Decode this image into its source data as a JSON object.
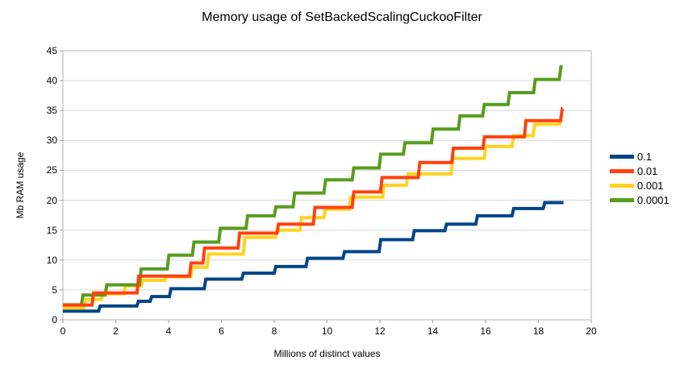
{
  "title": "Memory usage of SetBackedScalingCuckooFilter",
  "chart_data": {
    "type": "line",
    "subtype": "step",
    "title": "Memory usage of SetBackedScalingCuckooFilter",
    "xlabel": "Millions of distinct values",
    "ylabel": "Mb RAM usage",
    "xlim": [
      0,
      20
    ],
    "ylim": [
      0,
      45
    ],
    "xticks": [
      0,
      2,
      4,
      6,
      8,
      10,
      12,
      14,
      16,
      18,
      20
    ],
    "yticks": [
      0,
      5,
      10,
      15,
      20,
      25,
      30,
      35,
      40,
      45
    ],
    "grid": "horizontal-only",
    "gridline_color": "#d9d9d9",
    "frame_color": "#b3b3b3",
    "tick_color": "#999999",
    "legend_position": "right",
    "line_width": 4,
    "series": [
      {
        "name": "0.1",
        "color": "#004586",
        "end_x": 18.95,
        "points": [
          [
            0,
            1.45
          ],
          [
            1.35,
            2.3
          ],
          [
            2.8,
            3.1
          ],
          [
            3.3,
            3.9
          ],
          [
            4.03,
            5.2
          ],
          [
            5.35,
            6.8
          ],
          [
            6.77,
            7.8
          ],
          [
            8.0,
            8.9
          ],
          [
            9.2,
            10.3
          ],
          [
            10.6,
            11.4
          ],
          [
            11.97,
            13.4
          ],
          [
            13.24,
            14.9
          ],
          [
            14.46,
            16.0
          ],
          [
            15.63,
            17.4
          ],
          [
            17.0,
            18.6
          ],
          [
            18.18,
            19.6
          ]
        ]
      },
      {
        "name": "0.01",
        "color": "#FF420E",
        "end_x": 18.92,
        "points": [
          [
            0,
            2.45
          ],
          [
            1.1,
            4.5
          ],
          [
            2.81,
            7.3
          ],
          [
            4.79,
            9.5
          ],
          [
            5.3,
            12.0
          ],
          [
            6.63,
            14.5
          ],
          [
            8.1,
            16.0
          ],
          [
            9.48,
            18.8
          ],
          [
            10.95,
            21.4
          ],
          [
            12.02,
            23.8
          ],
          [
            13.45,
            26.3
          ],
          [
            14.72,
            28.7
          ],
          [
            15.9,
            30.6
          ],
          [
            17.47,
            33.3
          ],
          [
            18.84,
            35.3
          ]
        ]
      },
      {
        "name": "0.001",
        "color": "#FFD320",
        "end_x": 18.92,
        "points": [
          [
            0,
            2.0
          ],
          [
            0.8,
            3.4
          ],
          [
            1.45,
            4.35
          ],
          [
            2.3,
            5.7
          ],
          [
            2.97,
            6.6
          ],
          [
            3.85,
            7.2
          ],
          [
            4.84,
            8.8
          ],
          [
            5.46,
            11.0
          ],
          [
            6.83,
            13.8
          ],
          [
            8.05,
            15.0
          ],
          [
            8.97,
            17.1
          ],
          [
            9.88,
            18.5
          ],
          [
            10.83,
            20.5
          ],
          [
            12.1,
            22.5
          ],
          [
            13.0,
            24.4
          ],
          [
            14.7,
            27.0
          ],
          [
            15.95,
            29.0
          ],
          [
            17.0,
            30.8
          ],
          [
            17.8,
            32.7
          ],
          [
            18.8,
            34.0
          ]
        ]
      },
      {
        "name": "0.0001",
        "color": "#579D1C",
        "end_x": 18.92,
        "points": [
          [
            0,
            2.5
          ],
          [
            0.7,
            4.15
          ],
          [
            1.6,
            5.85
          ],
          [
            2.9,
            8.5
          ],
          [
            3.95,
            10.8
          ],
          [
            4.9,
            13.0
          ],
          [
            5.9,
            15.3
          ],
          [
            6.93,
            17.4
          ],
          [
            8.0,
            18.9
          ],
          [
            8.71,
            21.2
          ],
          [
            9.88,
            23.4
          ],
          [
            10.95,
            25.4
          ],
          [
            11.97,
            27.7
          ],
          [
            12.89,
            29.6
          ],
          [
            13.95,
            31.9
          ],
          [
            14.97,
            34.1
          ],
          [
            15.89,
            36.0
          ],
          [
            16.85,
            38.0
          ],
          [
            17.82,
            40.2
          ],
          [
            18.79,
            42.3
          ]
        ]
      }
    ],
    "draw_order": [
      0,
      2,
      3,
      1
    ],
    "legend_order": [
      0,
      1,
      2,
      3
    ]
  }
}
